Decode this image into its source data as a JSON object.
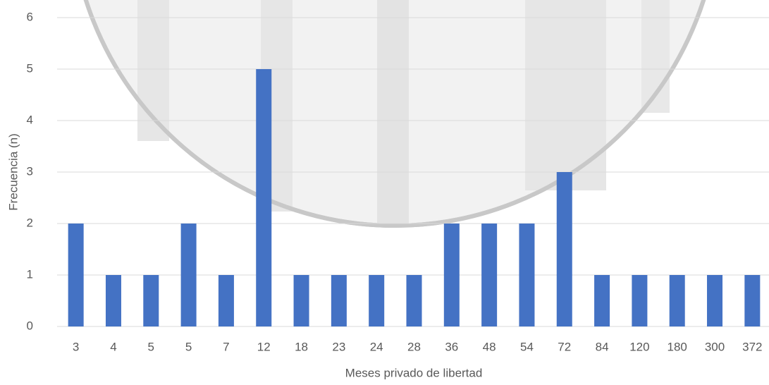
{
  "chart_data": {
    "type": "bar",
    "x_label": "Meses privado de libertad",
    "y_label": "Frecuencia (n)",
    "categories": [
      "3",
      "4",
      "5",
      "5",
      "7",
      "12",
      "18",
      "23",
      "24",
      "28",
      "36",
      "48",
      "54",
      "72",
      "84",
      "120",
      "180",
      "300",
      "372"
    ],
    "values": [
      2,
      1,
      1,
      2,
      1,
      5,
      1,
      1,
      1,
      1,
      2,
      2,
      2,
      3,
      1,
      1,
      1,
      1,
      1
    ],
    "color": "#4472c4",
    "ylim": [
      0,
      6
    ],
    "yticks": [
      0,
      1,
      2,
      3,
      4,
      5,
      6
    ],
    "grid": true
  }
}
